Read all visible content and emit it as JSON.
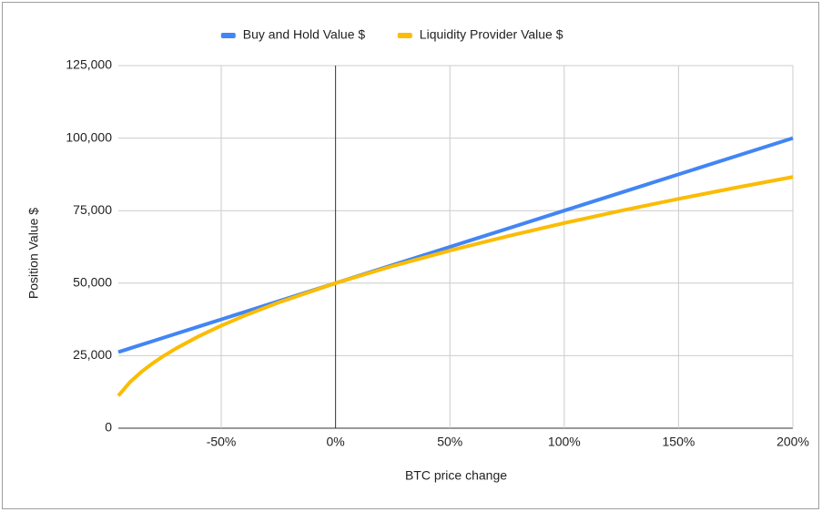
{
  "chart_data": {
    "type": "line",
    "x_label": "BTC price change",
    "y_label": "Position Value $",
    "x": [
      -95,
      -90,
      -85,
      -80,
      -75,
      -70,
      -60,
      -50,
      -40,
      -25,
      0,
      25,
      50,
      75,
      100,
      125,
      150,
      175,
      200
    ],
    "series": [
      {
        "name": "Buy and Hold Value $",
        "color": "#4285f4",
        "values": [
          26250,
          27500,
          28750,
          30000,
          31250,
          32500,
          35000,
          37500,
          40000,
          43750,
          50000,
          56250,
          62500,
          68750,
          75000,
          81250,
          87500,
          93750,
          100000
        ]
      },
      {
        "name": "Liquidity Provider Value $",
        "color": "#fbbc04",
        "values": [
          11180,
          15811,
          19365,
          22361,
          25000,
          27386,
          31623,
          35355,
          38730,
          43301,
          50000,
          55902,
          61237,
          66144,
          70711,
          75000,
          79057,
          82916,
          86603
        ]
      }
    ],
    "xlim": [
      -95,
      200
    ],
    "xticks": [
      {
        "value": -50,
        "label": "-50%"
      },
      {
        "value": 0,
        "label": "0%"
      },
      {
        "value": 50,
        "label": "50%"
      },
      {
        "value": 100,
        "label": "100%"
      },
      {
        "value": 150,
        "label": "150%"
      },
      {
        "value": 200,
        "label": "200%"
      }
    ],
    "ylim": [
      0,
      125000
    ],
    "yticks": [
      0,
      {
        "value": 25000,
        "label": "25,000"
      },
      {
        "value": 50000,
        "label": "50,000"
      },
      {
        "value": 75000,
        "label": "75,000"
      },
      {
        "value": 100000,
        "label": "100,000"
      },
      {
        "value": 125000,
        "label": "125,000"
      }
    ],
    "grid": true,
    "legend": "top"
  }
}
